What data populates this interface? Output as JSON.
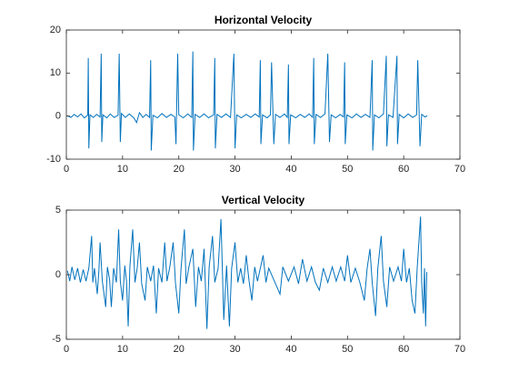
{
  "chart_data": [
    {
      "type": "line",
      "title": "Horizontal Velocity",
      "xlim": [
        0,
        70
      ],
      "xticks": [
        0,
        10,
        20,
        30,
        40,
        50,
        60,
        70
      ],
      "ylim": [
        -10,
        20
      ],
      "yticks": [
        -10,
        0,
        10,
        20
      ],
      "box": true,
      "series": [
        {
          "color": "#0072bd",
          "x": [
            0.2,
            0.8,
            1.4,
            2,
            2.6,
            3.2,
            3.8,
            3.9,
            4.0,
            4.2,
            4.8,
            5.4,
            6.0,
            6.2,
            6.3,
            6.5,
            7.2,
            7.8,
            8.5,
            9.2,
            9.4,
            9.6,
            9.8,
            10.5,
            11.2,
            12,
            12.5,
            13,
            13.6,
            14.2,
            14.8,
            15,
            15.1,
            15.4,
            16.2,
            17,
            17.8,
            18.6,
            19.3,
            19.5,
            19.8,
            20,
            20.8,
            21.6,
            22.3,
            22.5,
            22.6,
            22.9,
            23.7,
            24.5,
            25.3,
            26.2,
            26.4,
            26.5,
            26.8,
            27.6,
            28.4,
            29.2,
            29.8,
            30,
            30.3,
            31.1,
            32,
            32.8,
            33.6,
            34.3,
            34.5,
            34.6,
            34.9,
            35.7,
            36.3,
            36.5,
            36.9,
            37.2,
            38,
            38.8,
            39.3,
            39.5,
            39.6,
            39.9,
            40.8,
            41.6,
            42.4,
            43.2,
            43.8,
            44,
            44.1,
            44.4,
            45.2,
            46,
            46.5,
            46.8,
            47.1,
            47.9,
            48.7,
            49.3,
            49.5,
            49.6,
            49.9,
            50.8,
            51.6,
            52.4,
            53.2,
            54,
            54.4,
            54.5,
            54.8,
            55.6,
            56.4,
            56.9,
            57,
            57.3,
            58.1,
            58.8,
            58.9,
            59.2,
            60,
            60.8,
            61.6,
            62.3,
            62.5,
            62.9,
            63.2,
            63.8,
            64.2
          ],
          "values": [
            0.1,
            -0.3,
            0.4,
            -0.2,
            0.5,
            -0.4,
            0.2,
            13.5,
            -7.5,
            0.3,
            -0.3,
            0.4,
            -0.2,
            14.5,
            -6,
            0.3,
            -0.4,
            0.5,
            -0.3,
            0.2,
            14.5,
            -6,
            0.6,
            -0.3,
            0.5,
            -0.4,
            -1.5,
            0.8,
            -0.3,
            0.4,
            -0.3,
            13,
            -8,
            0.2,
            -0.4,
            0.6,
            -0.3,
            0.4,
            -0.2,
            -6.5,
            14.5,
            0.3,
            -0.4,
            0.5,
            -0.3,
            15,
            -8,
            0.4,
            -0.3,
            0.5,
            -0.4,
            0.3,
            13.5,
            -7.5,
            0.4,
            -0.3,
            0.5,
            -0.3,
            14.5,
            -7.5,
            0.3,
            -0.4,
            0.4,
            -0.3,
            0.5,
            -0.2,
            13,
            -6.5,
            0.3,
            -0.4,
            0.3,
            12.5,
            -6.5,
            0.4,
            -0.3,
            0.5,
            -0.3,
            12,
            -6.5,
            0.3,
            -0.4,
            0.4,
            -0.3,
            0.5,
            -0.3,
            13.5,
            -6.5,
            0.4,
            -0.3,
            0.5,
            14.5,
            -6,
            0.3,
            -0.4,
            0.4,
            -0.2,
            12.5,
            -6.5,
            0.3,
            -0.4,
            0.5,
            -0.3,
            0.4,
            -0.3,
            13,
            -8,
            0.3,
            -0.4,
            0.5,
            14,
            -7,
            0.3,
            -0.3,
            14,
            -6.5,
            0.4,
            -0.4,
            0.5,
            -0.3,
            0.3,
            13,
            -7,
            0.4,
            -0.2,
            0.1
          ]
        }
      ]
    },
    {
      "type": "line",
      "title": "Vertical Velocity",
      "xlim": [
        0,
        70
      ],
      "xticks": [
        0,
        10,
        20,
        30,
        40,
        50,
        60,
        70
      ],
      "ylim": [
        -5,
        5
      ],
      "yticks": [
        -5,
        0,
        5
      ],
      "box": true,
      "series": [
        {
          "color": "#0072bd",
          "x": [
            0.2,
            0.6,
            1,
            1.5,
            2,
            2.5,
            3,
            3.5,
            4,
            4.5,
            4.7,
            5,
            5.5,
            5.8,
            6,
            6.4,
            7,
            7.3,
            7.7,
            8,
            8.4,
            8.9,
            9.3,
            9.6,
            10,
            10.4,
            10.7,
            11,
            11.3,
            11.8,
            12.2,
            12.6,
            13,
            13.4,
            14,
            14.4,
            15,
            15.5,
            16,
            16.4,
            17,
            17.5,
            17.9,
            18.4,
            19,
            19.4,
            20,
            20.4,
            21,
            21.3,
            21.8,
            22.5,
            23,
            23.5,
            24,
            24.5,
            25,
            25.4,
            26,
            26.4,
            27,
            27.5,
            28,
            28.5,
            29,
            29.4,
            30,
            30.5,
            31,
            31.5,
            32,
            32.5,
            33,
            33.5,
            34,
            35,
            35.5,
            36,
            37,
            38,
            38.5,
            39.5,
            40.5,
            41.3,
            42,
            42.8,
            43.6,
            44.3,
            45,
            45.7,
            46.5,
            47.3,
            48,
            48.8,
            49.5,
            50,
            50.6,
            51.4,
            52.2,
            53,
            53.5,
            54,
            54.4,
            55,
            55.4,
            56,
            56.4,
            57,
            57.5,
            58.2,
            59,
            59.6,
            60,
            60.5,
            61,
            61.5,
            62,
            62.4,
            63,
            63.2,
            63.5,
            63.7,
            63.9,
            64.1
          ],
          "values": [
            0.3,
            -0.5,
            0.6,
            -0.4,
            0.5,
            -0.6,
            0.4,
            -0.5,
            0.5,
            3,
            -0.6,
            0.5,
            -1.5,
            0.4,
            2.5,
            -0.5,
            -2.5,
            0.6,
            -0.4,
            -2.5,
            0.5,
            -0.6,
            3.5,
            -0.5,
            -2,
            0.7,
            -0.5,
            -4,
            0.6,
            3.5,
            -0.6,
            0.5,
            2.5,
            -0.7,
            -2,
            0.6,
            -0.5,
            0.7,
            -3,
            0.5,
            -0.6,
            2.5,
            -0.5,
            0.6,
            2.5,
            -0.6,
            -3,
            0.5,
            3.5,
            -0.7,
            0.6,
            2,
            -2.5,
            0.6,
            -0.5,
            2,
            -4.2,
            0.6,
            3,
            -0.6,
            0.5,
            4.3,
            -3.5,
            0.7,
            -4,
            0.5,
            2.5,
            -0.6,
            0.5,
            -0.7,
            1.5,
            -0.5,
            -2,
            0.6,
            -0.5,
            1.5,
            -0.6,
            0.5,
            -0.5,
            -1.5,
            0.6,
            -0.5,
            0.6,
            -0.7,
            1.2,
            -0.5,
            0.6,
            -0.6,
            -1.2,
            0.5,
            -0.6,
            0.6,
            -0.5,
            0.6,
            -0.5,
            1.5,
            -0.6,
            0.5,
            -0.6,
            -2,
            0.5,
            2,
            -0.6,
            -3.2,
            0.5,
            3,
            -0.5,
            -2.5,
            0.6,
            -0.5,
            0.6,
            -0.5,
            2,
            -0.6,
            0.5,
            -2,
            -3,
            0.5,
            4.5,
            -0.6,
            -3,
            0.5,
            -4,
            0.2
          ]
        }
      ]
    }
  ]
}
